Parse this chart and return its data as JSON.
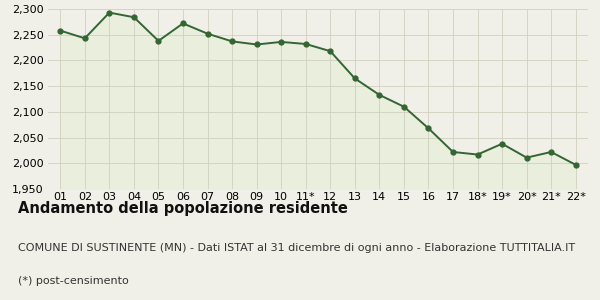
{
  "x_labels": [
    "01",
    "02",
    "03",
    "04",
    "05",
    "06",
    "07",
    "08",
    "09",
    "10",
    "11*",
    "12",
    "13",
    "14",
    "15",
    "16",
    "17",
    "18*",
    "19*",
    "20*",
    "21*",
    "22*"
  ],
  "y_values": [
    2258,
    2243,
    2293,
    2284,
    2238,
    2272,
    2252,
    2237,
    2231,
    2236,
    2232,
    2218,
    2165,
    2133,
    2110,
    2068,
    2022,
    2017,
    2038,
    2011,
    2022,
    1997
  ],
  "line_color": "#336633",
  "fill_color": "#eaeedc",
  "background_color": "#f0f0e8",
  "title": "Andamento della popolazione residente",
  "subtitle": "COMUNE DI SUSTINENTE (MN) - Dati ISTAT al 31 dicembre di ogni anno - Elaborazione TUTTITALIA.IT",
  "footnote": "(*) post-censimento",
  "ylim_min": 1950,
  "ylim_max": 2300,
  "yticks": [
    1950,
    2000,
    2050,
    2100,
    2150,
    2200,
    2250,
    2300
  ],
  "title_fontsize": 10.5,
  "subtitle_fontsize": 8,
  "footnote_fontsize": 8,
  "grid_color": "#d0d0c0",
  "tick_fontsize": 8
}
